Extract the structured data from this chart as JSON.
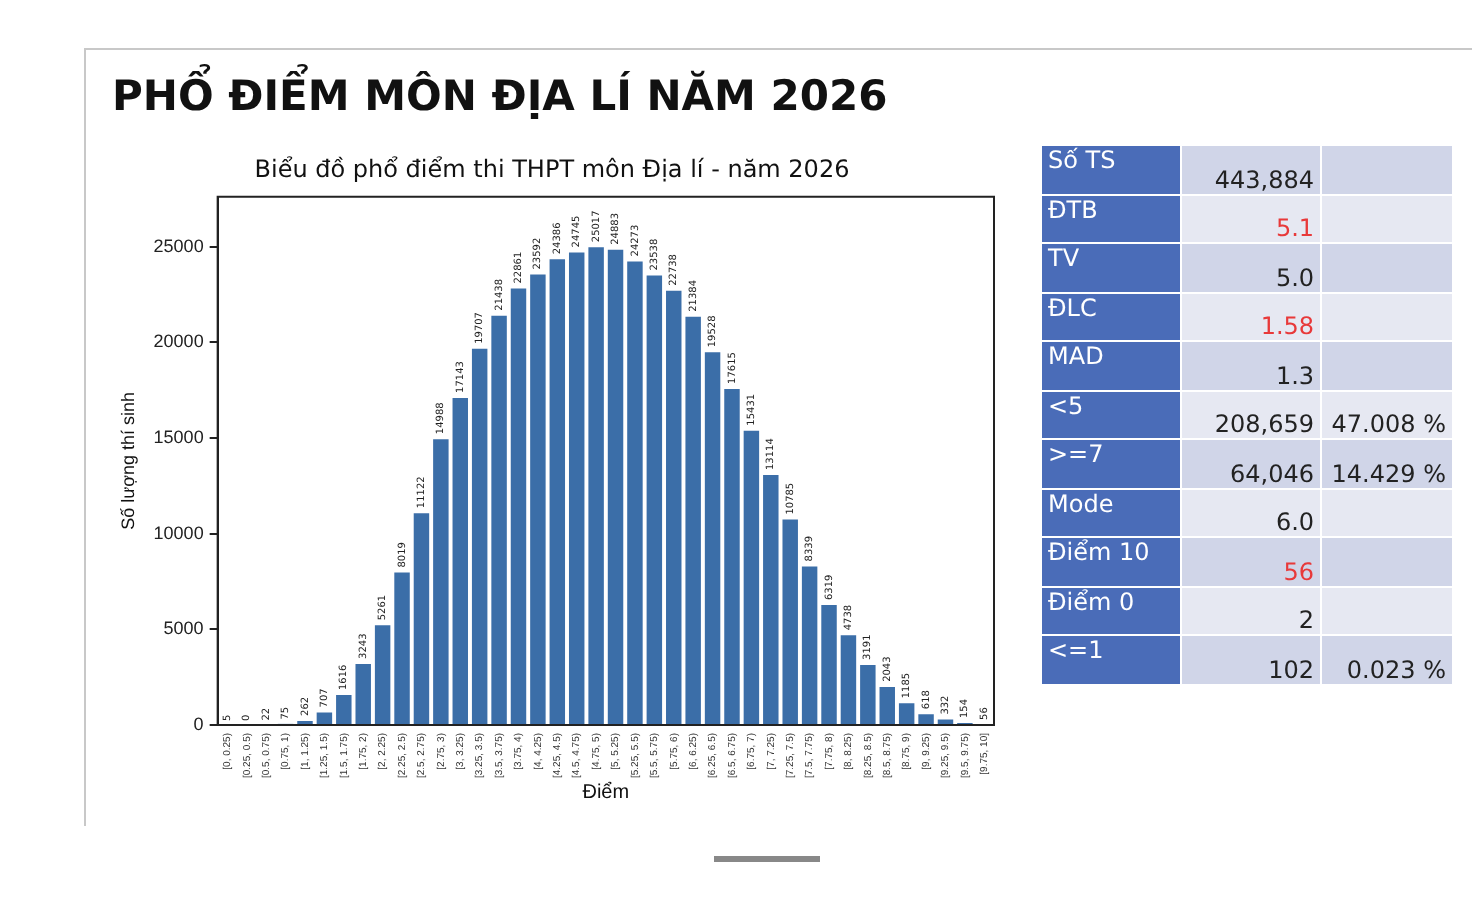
{
  "chart_data": [
    {
      "type": "bar",
      "title": "Biểu đồ phổ điểm thi THPT môn Địa lí - năm 2026",
      "xlabel": "Điểm",
      "ylabel": "Số lượng thí sinh",
      "annotations": [
        "PHỔ ĐIỂM MÔN ĐỊA LÍ NĂM 2026"
      ],
      "categories": [
        "[0, 0.25)",
        "[0.25, 0.5)",
        "[0.5, 0.75)",
        "[0.75, 1)",
        "[1, 1.25)",
        "[1.25, 1.5)",
        "[1.5, 1.75)",
        "[1.75, 2)",
        "[2, 2.25)",
        "[2.25, 2.5)",
        "[2.5, 2.75)",
        "[2.75, 3)",
        "[3, 3.25)",
        "[3.25, 3.5)",
        "[3.5, 3.75)",
        "[3.75, 4)",
        "[4, 4.25)",
        "[4.25, 4.5)",
        "[4.5, 4.75)",
        "[4.75, 5)",
        "[5, 5.25)",
        "[5.25, 5.5)",
        "[5.5, 5.75)",
        "[5.75, 6)",
        "[6, 6.25)",
        "[6.25, 6.5)",
        "[6.5, 6.75)",
        "[6.75, 7)",
        "[7, 7.25)",
        "[7.25, 7.5)",
        "[7.5, 7.75)",
        "[7.75, 8)",
        "[8, 8.25)",
        "[8.25, 8.5)",
        "[8.5, 8.75)",
        "[8.75, 9)",
        "[9, 9.25)",
        "[9.25, 9.5)",
        "[9.5, 9.75)",
        "[9.75, 10]"
      ],
      "values": [
        5,
        0,
        22,
        75,
        262,
        707,
        1616,
        3243,
        5261,
        8019,
        11122,
        14988,
        17143,
        19707,
        21438,
        22861,
        23592,
        24386,
        24745,
        25017,
        24883,
        24273,
        23538,
        22738,
        21384,
        19528,
        17615,
        15431,
        13114,
        10785,
        8339,
        6319,
        4738,
        3191,
        2043,
        1185,
        618,
        332,
        154,
        56
      ],
      "color": "#3b6ea8",
      "data_labels": true,
      "ylim": [
        0,
        27600
      ],
      "yticks": [
        0,
        5000,
        10000,
        15000,
        20000,
        25000
      ],
      "grid": false,
      "legend": false
    },
    {
      "type": "other",
      "cell_labels": [
        [
          "Số TS",
          "443,884",
          null
        ],
        [
          "ĐTB",
          "5.1",
          null
        ],
        [
          "TV",
          "5.0",
          null
        ],
        [
          "ĐLC",
          "1.58",
          null
        ],
        [
          "MAD",
          "1.3",
          null
        ],
        [
          "<5",
          "208,659",
          "47.008 %"
        ],
        [
          ">=7",
          "64,046",
          "14.429 %"
        ],
        [
          "Mode",
          "6.0",
          null
        ],
        [
          "Điểm 10",
          "56",
          null
        ],
        [
          "Điểm 0",
          "2",
          null
        ],
        [
          "<=1",
          "102",
          "0.023 %"
        ]
      ],
      "colors": [
        "#222222",
        "#e8393a",
        "#222222",
        "#e8393a",
        "#222222",
        "#222222",
        "#222222",
        "#222222",
        "#e8393a",
        "#222222",
        "#222222"
      ]
    }
  ]
}
